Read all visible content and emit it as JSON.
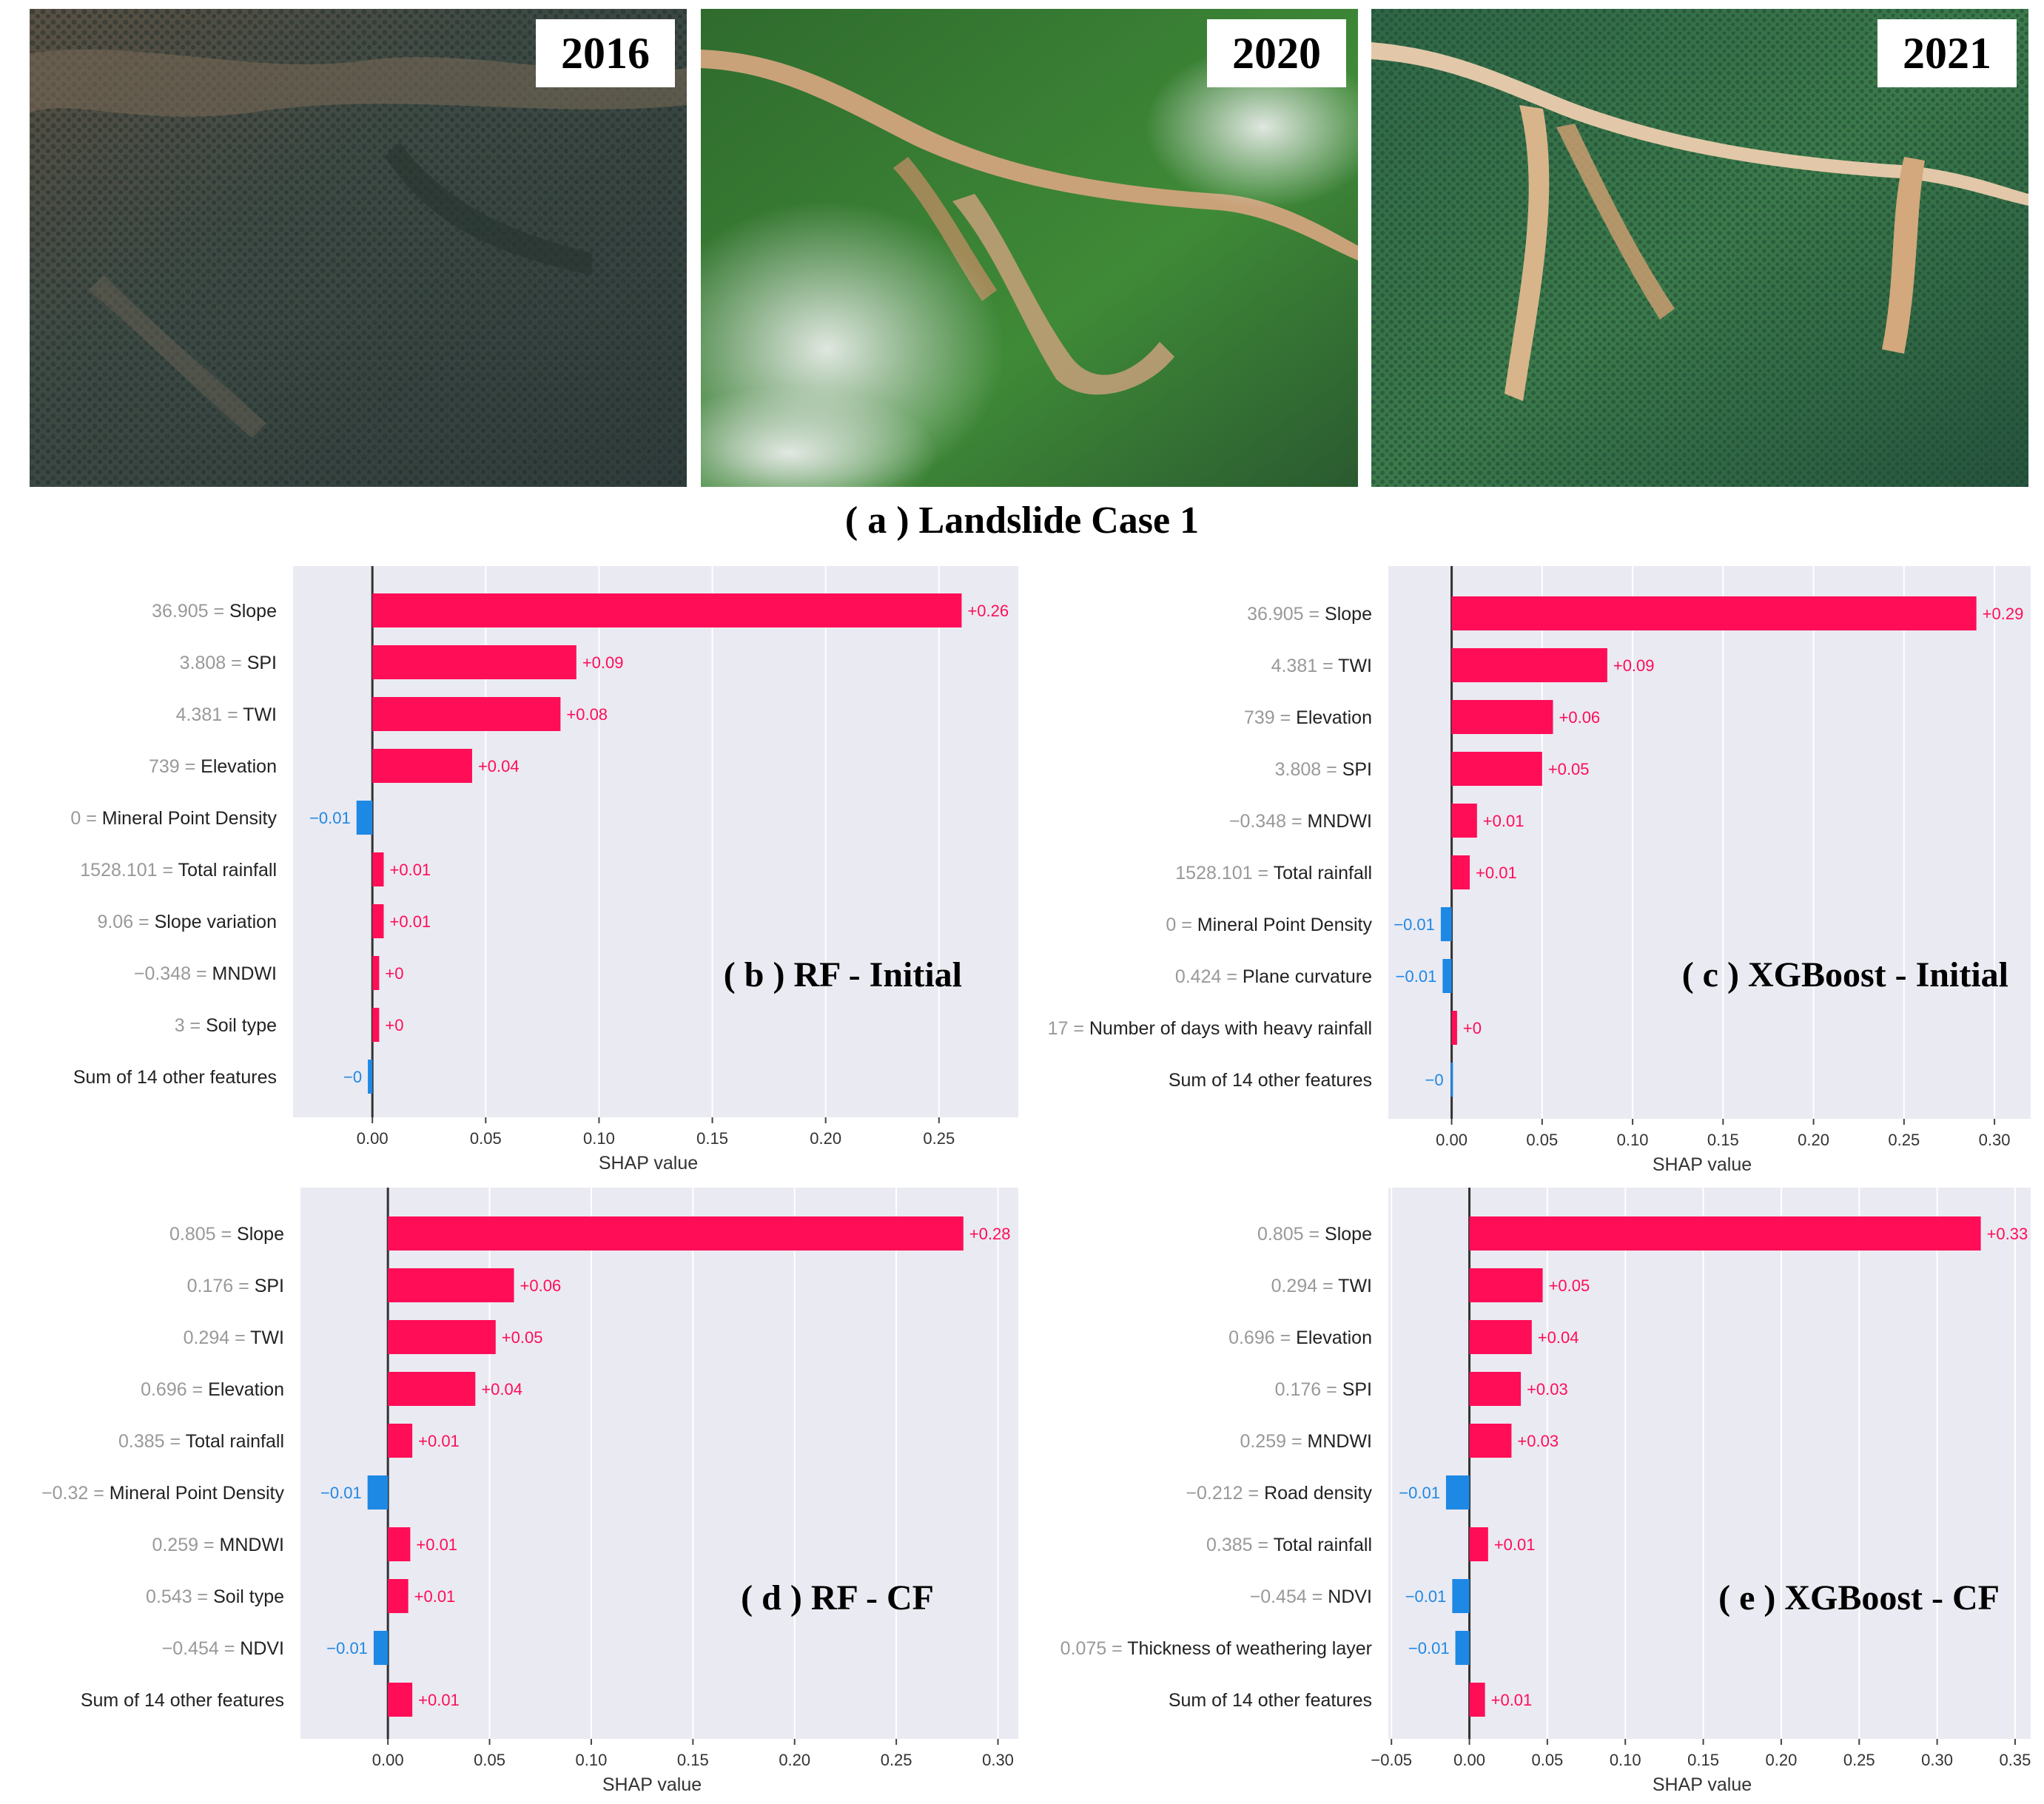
{
  "photos": [
    {
      "year": "2016",
      "scene": "dry-forest"
    },
    {
      "year": "2020",
      "scene": "cloudy-landslide"
    },
    {
      "year": "2021",
      "scene": "post-landslide"
    }
  ],
  "case_title": "( a ) Landslide Case 1",
  "colors": {
    "positive": "#ff0d57",
    "negative": "#1e88e5",
    "plot_bg": "#eaeaf2",
    "muted_text": "#999999",
    "text": "#222222"
  },
  "chart_data": [
    {
      "id": "b",
      "type": "bar",
      "orientation": "horizontal",
      "title": "( b ) RF - Initial",
      "xlabel": "SHAP value",
      "xlim": [
        -0.035,
        0.285
      ],
      "xticks": [
        0.0,
        0.05,
        0.1,
        0.15,
        0.2,
        0.25
      ],
      "xtick_labels": [
        "0.00",
        "0.05",
        "0.10",
        "0.15",
        "0.20",
        "0.25"
      ],
      "features": [
        {
          "value": "36.905",
          "name": "Slope",
          "shap": 0.26,
          "label": "+0.26"
        },
        {
          "value": "3.808",
          "name": "SPI",
          "shap": 0.09,
          "label": "+0.09"
        },
        {
          "value": "4.381",
          "name": "TWI",
          "shap": 0.083,
          "label": "+0.08"
        },
        {
          "value": "739",
          "name": "Elevation",
          "shap": 0.044,
          "label": "+0.04"
        },
        {
          "value": "0",
          "name": "Mineral Point Density",
          "shap": -0.007,
          "label": "−0.01"
        },
        {
          "value": "1528.101",
          "name": "Total rainfall",
          "shap": 0.005,
          "label": "+0.01"
        },
        {
          "value": "9.06",
          "name": "Slope variation",
          "shap": 0.005,
          "label": "+0.01"
        },
        {
          "value": "−0.348",
          "name": "MNDWI",
          "shap": 0.003,
          "label": "+0"
        },
        {
          "value": "3",
          "name": "Soil type",
          "shap": 0.003,
          "label": "+0"
        },
        {
          "value": "",
          "name": "Sum of 14 other features",
          "shap": -0.002,
          "label": "−0"
        }
      ]
    },
    {
      "id": "c",
      "type": "bar",
      "orientation": "horizontal",
      "title": "( c ) XGBoost - Initial",
      "xlabel": "SHAP value",
      "xlim": [
        -0.035,
        0.32
      ],
      "xticks": [
        0.0,
        0.05,
        0.1,
        0.15,
        0.2,
        0.25,
        0.3
      ],
      "xtick_labels": [
        "0.00",
        "0.05",
        "0.10",
        "0.15",
        "0.20",
        "0.25",
        "0.30"
      ],
      "features": [
        {
          "value": "36.905",
          "name": "Slope",
          "shap": 0.29,
          "label": "+0.29"
        },
        {
          "value": "4.381",
          "name": "TWI",
          "shap": 0.086,
          "label": "+0.09"
        },
        {
          "value": "739",
          "name": "Elevation",
          "shap": 0.056,
          "label": "+0.06"
        },
        {
          "value": "3.808",
          "name": "SPI",
          "shap": 0.05,
          "label": "+0.05"
        },
        {
          "value": "−0.348",
          "name": "MNDWI",
          "shap": 0.014,
          "label": "+0.01"
        },
        {
          "value": "1528.101",
          "name": "Total rainfall",
          "shap": 0.01,
          "label": "+0.01"
        },
        {
          "value": "0",
          "name": "Mineral Point Density",
          "shap": -0.006,
          "label": "−0.01"
        },
        {
          "value": "0.424",
          "name": "Plane curvature",
          "shap": -0.005,
          "label": "−0.01"
        },
        {
          "value": "17",
          "name": "Number of days with heavy rainfall",
          "shap": 0.003,
          "label": "+0"
        },
        {
          "value": "",
          "name": "Sum of 14 other features",
          "shap": -0.0005,
          "label": "−0"
        }
      ]
    },
    {
      "id": "d",
      "type": "bar",
      "orientation": "horizontal",
      "title": "( d ) RF - CF",
      "xlabel": "SHAP value",
      "xlim": [
        -0.043,
        0.31
      ],
      "xticks": [
        0.0,
        0.05,
        0.1,
        0.15,
        0.2,
        0.25,
        0.3
      ],
      "xtick_labels": [
        "0.00",
        "0.05",
        "0.10",
        "0.15",
        "0.20",
        "0.25",
        "0.30"
      ],
      "features": [
        {
          "value": "0.805",
          "name": "Slope",
          "shap": 0.283,
          "label": "+0.28"
        },
        {
          "value": "0.176",
          "name": "SPI",
          "shap": 0.062,
          "label": "+0.06"
        },
        {
          "value": "0.294",
          "name": "TWI",
          "shap": 0.053,
          "label": "+0.05"
        },
        {
          "value": "0.696",
          "name": "Elevation",
          "shap": 0.043,
          "label": "+0.04"
        },
        {
          "value": "0.385",
          "name": "Total rainfall",
          "shap": 0.012,
          "label": "+0.01"
        },
        {
          "value": "−0.32",
          "name": "Mineral Point Density",
          "shap": -0.01,
          "label": "−0.01"
        },
        {
          "value": "0.259",
          "name": "MNDWI",
          "shap": 0.011,
          "label": "+0.01"
        },
        {
          "value": "0.543",
          "name": "Soil type",
          "shap": 0.01,
          "label": "+0.01"
        },
        {
          "value": "−0.454",
          "name": "NDVI",
          "shap": -0.007,
          "label": "−0.01"
        },
        {
          "value": "",
          "name": "Sum of 14 other features",
          "shap": 0.012,
          "label": "+0.01"
        }
      ]
    },
    {
      "id": "e",
      "type": "bar",
      "orientation": "horizontal",
      "title": "( e ) XGBoost - CF",
      "xlabel": "SHAP value",
      "xlim": [
        -0.052,
        0.36
      ],
      "xticks": [
        -0.05,
        0.0,
        0.05,
        0.1,
        0.15,
        0.2,
        0.25,
        0.3,
        0.35
      ],
      "xtick_labels": [
        "−0.05",
        "0.00",
        "0.05",
        "0.10",
        "0.15",
        "0.20",
        "0.25",
        "0.30",
        "0.35"
      ],
      "features": [
        {
          "value": "0.805",
          "name": "Slope",
          "shap": 0.328,
          "label": "+0.33"
        },
        {
          "value": "0.294",
          "name": "TWI",
          "shap": 0.047,
          "label": "+0.05"
        },
        {
          "value": "0.696",
          "name": "Elevation",
          "shap": 0.04,
          "label": "+0.04"
        },
        {
          "value": "0.176",
          "name": "SPI",
          "shap": 0.033,
          "label": "+0.03"
        },
        {
          "value": "0.259",
          "name": "MNDWI",
          "shap": 0.027,
          "label": "+0.03"
        },
        {
          "value": "−0.212",
          "name": "Road density",
          "shap": -0.015,
          "label": "−0.01"
        },
        {
          "value": "0.385",
          "name": "Total rainfall",
          "shap": 0.012,
          "label": "+0.01"
        },
        {
          "value": "−0.454",
          "name": "NDVI",
          "shap": -0.011,
          "label": "−0.01"
        },
        {
          "value": "0.075",
          "name": "Thickness of weathering layer",
          "shap": -0.009,
          "label": "−0.01"
        },
        {
          "value": "",
          "name": "Sum of 14 other features",
          "shap": 0.01,
          "label": "+0.01"
        }
      ]
    }
  ]
}
